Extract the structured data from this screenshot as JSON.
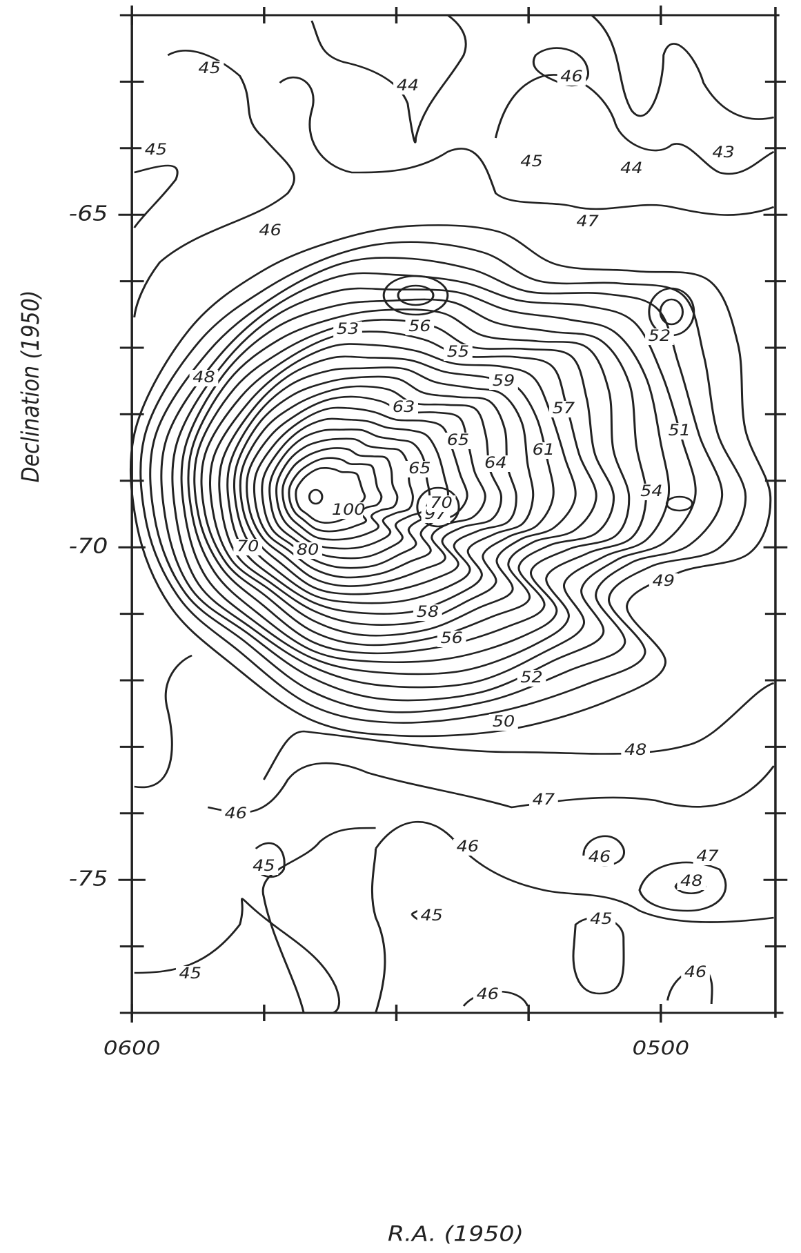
{
  "chart_data": {
    "type": "contour",
    "xlabel": "R.A. (1950)",
    "ylabel": "Declination (1950)",
    "xlim": [
      360,
      287
    ],
    "ylim": [
      -77,
      -62
    ],
    "xticks": [
      {
        "value": 360,
        "label": "0600"
      },
      {
        "value": 300,
        "label": "0500"
      }
    ],
    "xminor_ticks": [
      345,
      330,
      315
    ],
    "yticks": [
      -65,
      -70,
      -75
    ],
    "yminor_ticks": [
      -63,
      -64,
      -66,
      -67,
      -68,
      -69,
      -71,
      -72,
      -73,
      -74,
      -76
    ],
    "contour_labels": [
      45,
      44,
      46,
      45,
      45,
      44,
      43,
      46,
      47,
      53,
      56,
      52,
      55,
      48,
      59,
      63,
      57,
      65,
      61,
      51,
      64,
      65,
      54,
      100,
      97,
      70,
      70,
      80,
      58,
      56,
      49,
      52,
      50,
      48,
      47,
      46,
      46,
      45,
      46,
      47,
      48,
      45,
      45,
      45,
      46,
      46
    ]
  }
}
